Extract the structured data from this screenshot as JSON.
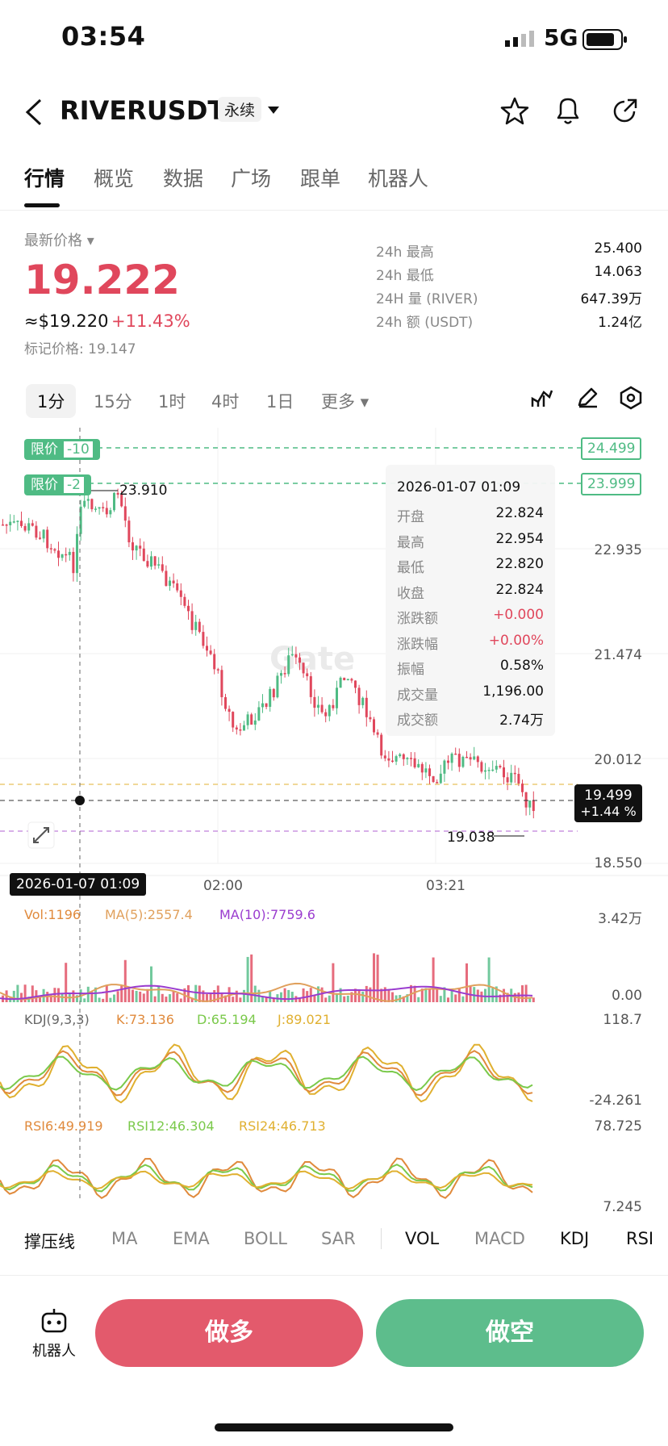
{
  "status": {
    "time": "03:54",
    "network": "5G"
  },
  "header": {
    "symbol": "RIVERUSDT",
    "contract_type": "永续"
  },
  "tabs": [
    "行情",
    "概览",
    "数据",
    "广场",
    "跟单",
    "机器人"
  ],
  "price": {
    "label": "最新价格",
    "last": "19.222",
    "usd": "≈$19.220",
    "change": "+11.43%",
    "mark": "标记价格: 19.147"
  },
  "stats": [
    {
      "label": "24h  最高",
      "value": "25.400"
    },
    {
      "label": "24h  最低",
      "value": "14.063"
    },
    {
      "label": "24H  量 (RIVER)",
      "value": "647.39万"
    },
    {
      "label": "24h  额 (USDT)",
      "value": "1.24亿"
    }
  ],
  "timeframes": [
    "1分",
    "15分",
    "1时",
    "4时",
    "1日",
    "更多"
  ],
  "chart": {
    "limit_orders": [
      {
        "tag": "限价",
        "qty": "-10",
        "price": "24.499"
      },
      {
        "tag": "限价",
        "qty": "-2",
        "price": "23.999"
      }
    ],
    "high_marker": "23.910",
    "low_marker": "19.038",
    "y_labels": [
      "22.935",
      "21.474",
      "20.012",
      "18.550"
    ],
    "x_labels": [
      "02:00",
      "03:21"
    ],
    "current_price": "19.499",
    "current_change": "+1.44 %",
    "crosshair_time": "2026-01-07 01:09",
    "colors": {
      "up": "#4fbb84",
      "down": "#e0475c"
    }
  },
  "tooltip": {
    "time": "2026-01-07 01:09",
    "rows": [
      {
        "k": "开盘",
        "v": "22.824"
      },
      {
        "k": "最高",
        "v": "22.954"
      },
      {
        "k": "最低",
        "v": "22.820"
      },
      {
        "k": "收盘",
        "v": "22.824"
      },
      {
        "k": "涨跌额",
        "v": "+0.000"
      },
      {
        "k": "涨跌幅",
        "v": "+0.00%"
      },
      {
        "k": "振幅",
        "v": "0.58%"
      },
      {
        "k": "成交量",
        "v": "1,196.00"
      },
      {
        "k": "成交额",
        "v": "2.74万"
      }
    ]
  },
  "volume": {
    "vol": "Vol:1196",
    "ma5": "MA(5):2557.4",
    "ma10": "MA(10):7759.6",
    "max": "3.42万",
    "min": "0.00"
  },
  "kdj": {
    "label": "KDJ(9,3,3)",
    "k": "K:73.136",
    "d": "D:65.194",
    "j": "J:89.021",
    "max": "118.7",
    "min": "-24.261"
  },
  "rsi": {
    "r6": "RSI6:49.919",
    "r12": "RSI12:46.304",
    "r24": "RSI24:46.713",
    "max": "78.725",
    "min": "7.245"
  },
  "indicator_tabs": [
    "撑压线",
    "MA",
    "EMA",
    "BOLL",
    "SAR",
    "VOL",
    "MACD",
    "KDJ",
    "RSI"
  ],
  "bottom": {
    "robot": "机器人",
    "long": "做多",
    "short": "做空"
  }
}
